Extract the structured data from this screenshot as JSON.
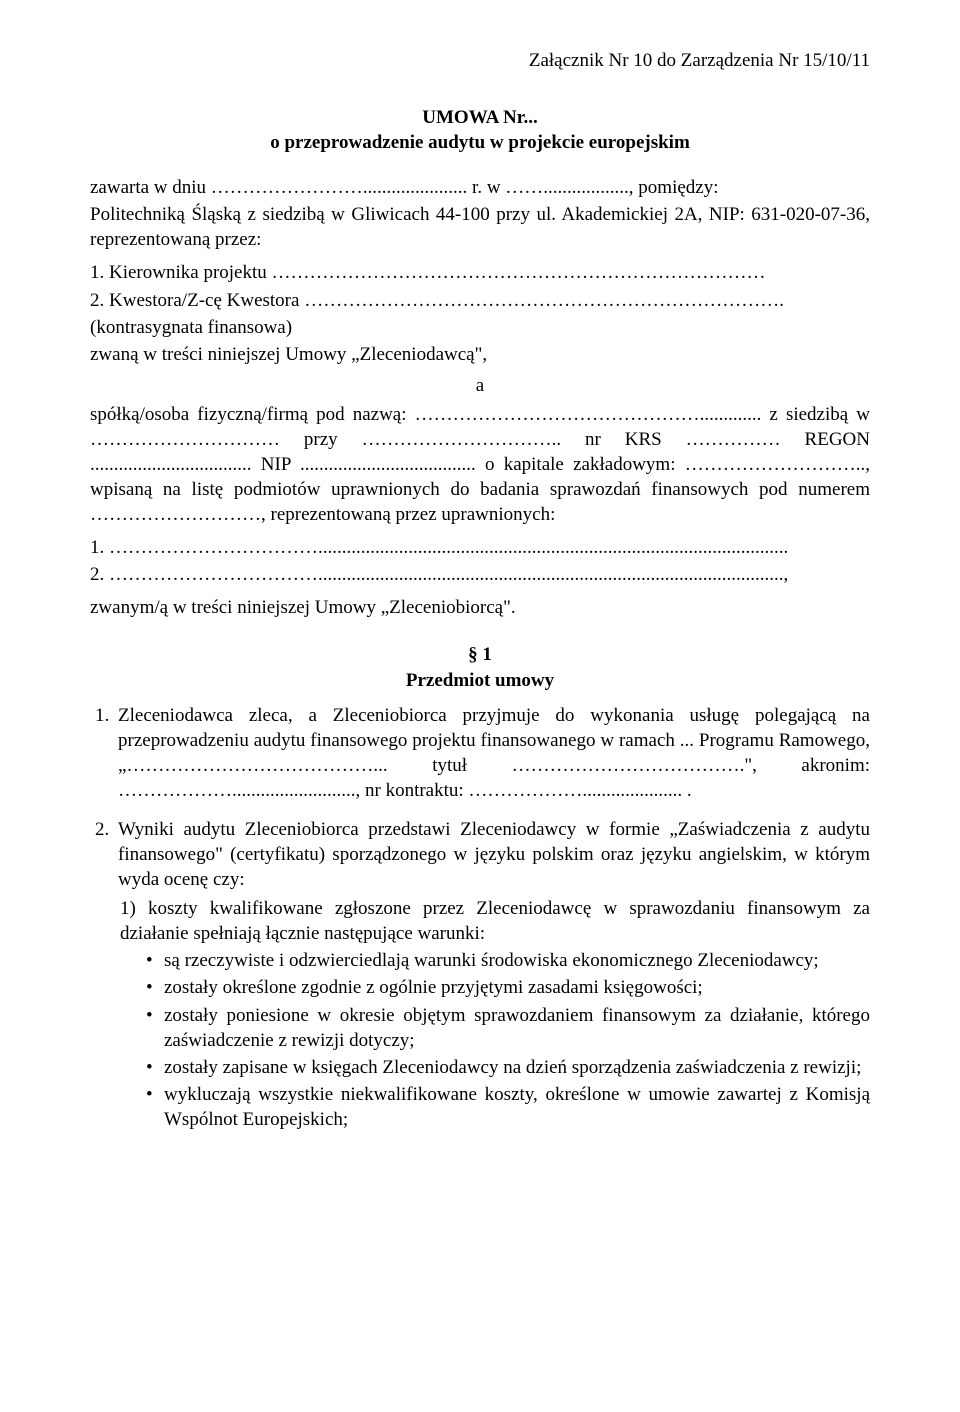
{
  "header": {
    "attachment_line": "Załącznik Nr 10 do Zarządzenia Nr 15/10/11"
  },
  "title": {
    "line1": "UMOWA Nr...",
    "line2": "o przeprowadzenie audytu w projekcie europejskim"
  },
  "intro": {
    "line1": "zawarta w dniu ……………………...................... r. w …….................., pomiędzy:",
    "line2": "Politechniką Śląską z siedzibą w Gliwicach 44-100 przy ul. Akademickiej 2A, NIP: 631-020-07-36, reprezentowaną przez:",
    "rep1": "1. Kierownika projektu ……………………………………………………………………",
    "rep2": "2. Kwestora/Z-cę Kwestora ………………………………………………………………….",
    "line3": "(kontrasygnata finansowa)",
    "line4": "zwaną w treści niniejszej Umowy „Zleceniodawcą\",",
    "a": "a",
    "line5": "spółką/osoba fizyczną/firmą pod nazwą: ………………………………………............. z siedzibą w ………………………… przy ………………………….. nr KRS …………… REGON .................................. NIP ..................................... o kapitale zakładowym: ……………………….., wpisaną na listę podmiotów uprawnionych do badania sprawozdań finansowych pod numerem ………………………, reprezentowaną przez uprawnionych:",
    "sig1": "1. ……………………………...................................................................................................",
    "sig2": "2. ……………………………..................................................................................................,",
    "line6": "zwanym/ą w treści niniejszej Umowy „Zleceniobiorcą\"."
  },
  "section1": {
    "num": "§ 1",
    "title": "Przedmiot umowy",
    "item1": "Zleceniodawca zleca, a Zleceniobiorca przyjmuje do wykonania usługę polegającą na przeprowadzeniu audytu finansowego projektu finansowanego w ramach ... Programu Ramowego, „…………………………………... tytuł ……………………………….\", akronim: ……………….........................., nr kontraktu: ………………..................... .",
    "item2_lead": "Wyniki audytu Zleceniobiorca przedstawi Zleceniodawcy w formie „Zaświadczenia z audytu finansowego\" (certyfikatu) sporządzonego w języku polskim oraz języku angielskim, w którym wyda ocenę czy:",
    "sub1_lead": "1)  koszty kwalifikowane zgłoszone przez Zleceniodawcę w sprawozdaniu finansowym za działanie spełniają łącznie następujące warunki:",
    "bullets": [
      "są rzeczywiste i odzwierciedlają warunki środowiska ekonomicznego Zleceniodawcy;",
      "zostały określone zgodnie z ogólnie przyjętymi zasadami księgowości;",
      "zostały poniesione w okresie objętym sprawozdaniem finansowym za działanie, którego zaświadczenie z rewizji dotyczy;",
      "zostały zapisane w księgach Zleceniodawcy na dzień sporządzenia zaświadczenia z rewizji;",
      "wykluczają wszystkie niekwalifikowane koszty, określone w umowie zawartej z Komisją Wspólnot Europejskich;"
    ]
  }
}
